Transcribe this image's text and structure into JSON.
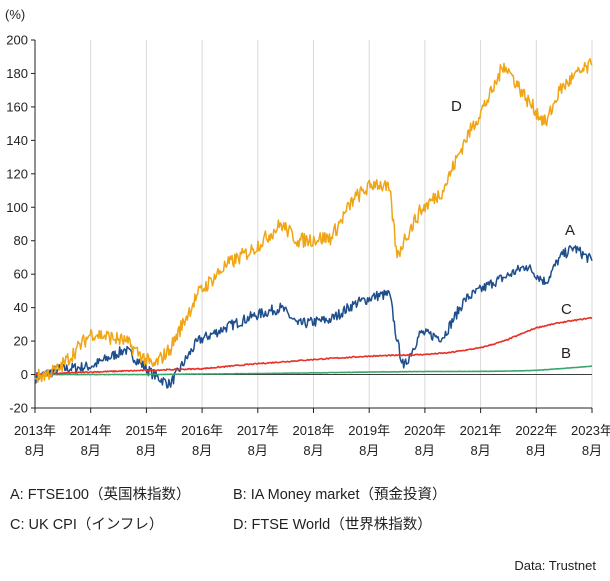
{
  "chart_data": {
    "type": "line",
    "unit_label": "(%)",
    "ylim": [
      -20,
      200
    ],
    "y_ticks": [
      200,
      180,
      160,
      140,
      120,
      100,
      80,
      60,
      40,
      20,
      0,
      -20
    ],
    "x_ticks": [
      {
        "year": "2013年",
        "month": "8月"
      },
      {
        "year": "2014年",
        "month": "8月"
      },
      {
        "year": "2015年",
        "month": "8月"
      },
      {
        "year": "2016年",
        "month": "8月"
      },
      {
        "year": "2017年",
        "month": "8月"
      },
      {
        "year": "2018年",
        "month": "8月"
      },
      {
        "year": "2019年",
        "month": "8月"
      },
      {
        "year": "2020年",
        "month": "8月"
      },
      {
        "year": "2021年",
        "month": "8月"
      },
      {
        "year": "2022年",
        "month": "8月"
      },
      {
        "year": "2023年",
        "month": "8月"
      }
    ],
    "grid": "vertical-only",
    "series": [
      {
        "name": "A",
        "color": "#1f4e8c",
        "x": [
          2013.58,
          2014.0,
          2014.6,
          2015.2,
          2015.7,
          2016.0,
          2016.5,
          2017.0,
          2017.5,
          2018.0,
          2018.3,
          2018.9,
          2019.3,
          2019.7,
          2019.95,
          2020.08,
          2020.2,
          2020.5,
          2020.9,
          2021.3,
          2021.8,
          2022.0,
          2022.4,
          2022.75,
          2023.0,
          2023.25,
          2023.58
        ],
        "y": [
          -2,
          3,
          5,
          15,
          0,
          -6,
          20,
          28,
          35,
          40,
          30,
          33,
          42,
          47,
          48,
          20,
          4,
          25,
          22,
          45,
          55,
          58,
          65,
          55,
          70,
          76,
          68
        ]
      },
      {
        "name": "B",
        "color": "#3aa66b",
        "x": [
          2013.58,
          2014.58,
          2015.58,
          2016.58,
          2017.58,
          2018.58,
          2019.58,
          2020.58,
          2021.58,
          2022.0,
          2022.58,
          2023.0,
          2023.58
        ],
        "y": [
          0,
          0,
          0,
          0.3,
          0.6,
          1.0,
          1.5,
          1.8,
          1.9,
          2.0,
          2.5,
          3.5,
          5
        ]
      },
      {
        "name": "C",
        "color": "#e53228",
        "x": [
          2013.58,
          2014.58,
          2015.58,
          2016.58,
          2017.58,
          2018.58,
          2019.58,
          2020.58,
          2021.0,
          2021.58,
          2022.0,
          2022.58,
          2023.0,
          2023.58
        ],
        "y": [
          0,
          1.5,
          2.5,
          3.5,
          6.5,
          9,
          11,
          12,
          13,
          16,
          20,
          28,
          31,
          34
        ]
      },
      {
        "name": "D",
        "color": "#f0a516",
        "x": [
          2013.58,
          2014.0,
          2014.6,
          2015.2,
          2015.7,
          2016.0,
          2016.5,
          2017.0,
          2017.5,
          2018.0,
          2018.3,
          2018.9,
          2019.3,
          2019.7,
          2019.95,
          2020.08,
          2020.2,
          2020.5,
          2020.9,
          2021.3,
          2021.8,
          2022.0,
          2022.4,
          2022.75,
          2023.0,
          2023.25,
          2023.58
        ],
        "y": [
          -2,
          3,
          25,
          20,
          5,
          15,
          48,
          65,
          75,
          90,
          80,
          82,
          105,
          115,
          110,
          70,
          80,
          98,
          110,
          140,
          170,
          186,
          165,
          150,
          170,
          178,
          185
        ]
      }
    ]
  },
  "series_labels": {
    "a": {
      "text": "A"
    },
    "b": {
      "text": "B"
    },
    "c": {
      "text": "C"
    },
    "d": {
      "text": "D"
    }
  },
  "legend": {
    "a": "A: FTSE100（英国株指数）",
    "b": "B: IA Money market（預金投資）",
    "c": "C: UK CPI（インフレ）",
    "d": "D: FTSE World（世界株指数）"
  },
  "source": "Data: Trustnet"
}
